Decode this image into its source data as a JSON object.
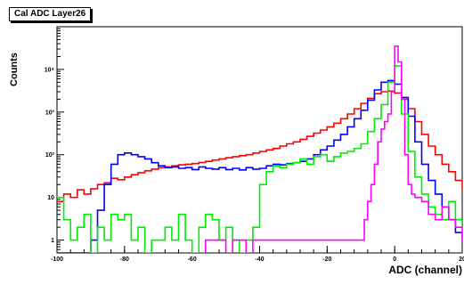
{
  "chart_data": {
    "type": "line",
    "title": "Cal ADC Layer26",
    "xlabel": "ADC (channel)",
    "ylabel": "Counts",
    "xlim": [
      -100,
      20
    ],
    "ylim": [
      0.5,
      100000
    ],
    "yscale": "log",
    "grid": false,
    "x_tick_labels": [
      "-100",
      "-80",
      "-60",
      "-40",
      "-20",
      "0",
      "20"
    ],
    "x_tick_values": [
      -100,
      -80,
      -60,
      -40,
      -20,
      0,
      20
    ],
    "y_tick_labels": [
      "1",
      "10",
      "10²",
      "10³",
      "10⁴"
    ],
    "y_tick_values": [
      1,
      10,
      100,
      1000,
      10000
    ],
    "series": [
      {
        "color": "#ff0000",
        "x": [
          -100,
          -98,
          -96,
          -94,
          -92,
          -90,
          -88,
          -86,
          -84,
          -82,
          -80,
          -78,
          -76,
          -74,
          -72,
          -70,
          -68,
          -66,
          -64,
          -62,
          -60,
          -58,
          -56,
          -54,
          -52,
          -50,
          -48,
          -46,
          -44,
          -42,
          -40,
          -38,
          -36,
          -34,
          -32,
          -30,
          -28,
          -26,
          -24,
          -22,
          -20,
          -18,
          -16,
          -14,
          -12,
          -10,
          -8,
          -6,
          -4,
          -2,
          0,
          2,
          4,
          6,
          8,
          10,
          12,
          14,
          16,
          18,
          20
        ],
        "y": [
          8,
          12,
          10,
          15,
          12,
          16,
          20,
          22,
          28,
          26,
          30,
          34,
          38,
          42,
          46,
          50,
          52,
          55,
          58,
          60,
          62,
          66,
          70,
          75,
          80,
          85,
          90,
          95,
          100,
          110,
          120,
          130,
          140,
          160,
          180,
          200,
          230,
          270,
          320,
          380,
          450,
          550,
          700,
          900,
          1200,
          1600,
          2100,
          2700,
          3000,
          3100,
          2800,
          2000,
          1200,
          600,
          300,
          160,
          100,
          60,
          40,
          25,
          15
        ]
      },
      {
        "color": "#0000ff",
        "x": [
          -100,
          -98,
          -96,
          -94,
          -92,
          -90,
          -88,
          -86,
          -84,
          -82,
          -80,
          -78,
          -76,
          -74,
          -72,
          -70,
          -68,
          -66,
          -64,
          -62,
          -60,
          -58,
          -56,
          -54,
          -52,
          -50,
          -48,
          -46,
          -44,
          -42,
          -40,
          -38,
          -36,
          -34,
          -32,
          -30,
          -28,
          -26,
          -24,
          -22,
          -20,
          -18,
          -16,
          -14,
          -12,
          -10,
          -8,
          -6,
          -4,
          -2,
          0,
          2,
          4,
          6,
          8,
          10,
          12,
          14,
          16,
          18,
          20
        ],
        "y": [
          0.5,
          0.5,
          0.5,
          0.5,
          0.5,
          1,
          5,
          20,
          60,
          100,
          110,
          100,
          90,
          80,
          65,
          55,
          50,
          52,
          48,
          50,
          45,
          52,
          48,
          46,
          50,
          45,
          48,
          44,
          50,
          46,
          48,
          55,
          60,
          58,
          62,
          65,
          70,
          80,
          100,
          130,
          160,
          220,
          300,
          450,
          700,
          1100,
          1900,
          3300,
          5000,
          5500,
          4500,
          2200,
          800,
          200,
          60,
          25,
          12,
          6,
          3,
          1.5,
          1
        ]
      },
      {
        "color": "#00ee00",
        "x": [
          -100,
          -98,
          -96,
          -94,
          -92,
          -90,
          -88,
          -86,
          -84,
          -82,
          -80,
          -78,
          -76,
          -74,
          -72,
          -70,
          -68,
          -66,
          -64,
          -62,
          -60,
          -58,
          -56,
          -54,
          -52,
          -50,
          -48,
          -46,
          -44,
          -42,
          -40,
          -38,
          -36,
          -34,
          -32,
          -30,
          -28,
          -26,
          -24,
          -22,
          -20,
          -18,
          -16,
          -14,
          -12,
          -10,
          -8,
          -6,
          -4,
          -2,
          0,
          2,
          4,
          6,
          8,
          10,
          12,
          14,
          16,
          18,
          20
        ],
        "y": [
          10,
          3,
          1,
          2,
          4,
          0.5,
          2,
          1,
          4,
          3,
          4,
          1,
          2,
          0.5,
          1,
          1,
          2,
          1,
          4,
          1,
          0.5,
          2,
          4,
          3,
          1,
          2,
          1,
          0.5,
          1,
          2,
          20,
          40,
          55,
          50,
          60,
          65,
          80,
          60,
          90,
          100,
          70,
          90,
          110,
          120,
          140,
          180,
          350,
          700,
          1500,
          5000,
          12000,
          900,
          120,
          30,
          12,
          6,
          4,
          3,
          8,
          3,
          2
        ]
      },
      {
        "color": "#ff00ff",
        "x": [
          -58,
          -56,
          -50,
          -48,
          -44,
          -42,
          -10,
          -9,
          -8,
          -7,
          -6,
          -5,
          -4,
          -3,
          -2,
          -1,
          0,
          1,
          2,
          3,
          4,
          5,
          6,
          8,
          10,
          12,
          14,
          16,
          18,
          20
        ],
        "y": [
          0.5,
          1,
          0.5,
          1,
          0.5,
          1,
          1,
          3,
          8,
          20,
          60,
          200,
          400,
          600,
          900,
          3000,
          35000,
          15000,
          2000,
          100,
          20,
          12,
          10,
          8,
          4,
          3,
          6,
          3,
          2,
          1
        ]
      }
    ]
  }
}
